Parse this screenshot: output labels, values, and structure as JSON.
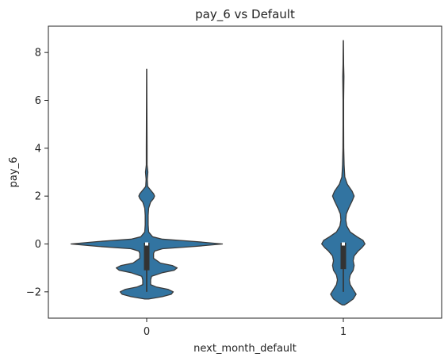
{
  "chart_data": {
    "type": "violin",
    "title": "pay_6 vs Default",
    "xlabel": "next_month_default",
    "ylabel": "pay_6",
    "categories": [
      "0",
      "1"
    ],
    "ylim": [
      -3.1,
      9.1
    ],
    "yticks": [
      -2,
      0,
      2,
      4,
      6,
      8
    ],
    "ytick_labels": [
      "−2",
      "0",
      "2",
      "4",
      "6",
      "8"
    ],
    "grid": false,
    "legend": "none",
    "colors": {
      "fill": "#3274a1",
      "edge": "#3a3a3a",
      "box": "#333333",
      "median": "#ffffff"
    },
    "violins": [
      {
        "category": "0",
        "profile": [
          [
            -2.3,
            0.02
          ],
          [
            -2.2,
            0.16
          ],
          [
            -2.1,
            0.25
          ],
          [
            -2.0,
            0.27
          ],
          [
            -1.9,
            0.22
          ],
          [
            -1.8,
            0.1
          ],
          [
            -1.7,
            0.04
          ],
          [
            -1.5,
            0.04
          ],
          [
            -1.35,
            0.05
          ],
          [
            -1.2,
            0.16
          ],
          [
            -1.1,
            0.28
          ],
          [
            -1.0,
            0.31
          ],
          [
            -0.9,
            0.26
          ],
          [
            -0.8,
            0.14
          ],
          [
            -0.6,
            0.07
          ],
          [
            -0.4,
            0.07
          ],
          [
            -0.3,
            0.08
          ],
          [
            -0.2,
            0.16
          ],
          [
            -0.1,
            0.5
          ],
          [
            0.0,
            0.77
          ],
          [
            0.1,
            0.5
          ],
          [
            0.2,
            0.16
          ],
          [
            0.3,
            0.06
          ],
          [
            0.5,
            0.02
          ],
          [
            0.8,
            0.015
          ],
          [
            1.2,
            0.015
          ],
          [
            1.5,
            0.02
          ],
          [
            1.75,
            0.04
          ],
          [
            1.9,
            0.07
          ],
          [
            2.0,
            0.08
          ],
          [
            2.1,
            0.07
          ],
          [
            2.25,
            0.04
          ],
          [
            2.4,
            0.01
          ],
          [
            2.7,
            0.006
          ],
          [
            3.0,
            0.012
          ],
          [
            3.3,
            0.004
          ],
          [
            4.0,
            0.004
          ],
          [
            5.0,
            0.003
          ],
          [
            6.0,
            0.002
          ],
          [
            7.3,
            0.001
          ]
        ],
        "box": {
          "q1": -1.1,
          "q3": 0.05,
          "median": 0.0,
          "whisker_low": -2.0,
          "whisker_high": 0.05
        }
      },
      {
        "category": "1",
        "profile": [
          [
            -2.55,
            0.01
          ],
          [
            -2.45,
            0.05
          ],
          [
            -2.3,
            0.1
          ],
          [
            -2.1,
            0.13
          ],
          [
            -1.9,
            0.1
          ],
          [
            -1.7,
            0.07
          ],
          [
            -1.5,
            0.06
          ],
          [
            -1.3,
            0.07
          ],
          [
            -1.1,
            0.1
          ],
          [
            -0.9,
            0.11
          ],
          [
            -0.7,
            0.1
          ],
          [
            -0.5,
            0.11
          ],
          [
            -0.3,
            0.15
          ],
          [
            -0.15,
            0.19
          ],
          [
            0.0,
            0.22
          ],
          [
            0.15,
            0.2
          ],
          [
            0.3,
            0.14
          ],
          [
            0.5,
            0.07
          ],
          [
            0.75,
            0.035
          ],
          [
            1.0,
            0.025
          ],
          [
            1.25,
            0.03
          ],
          [
            1.5,
            0.055
          ],
          [
            1.8,
            0.09
          ],
          [
            2.0,
            0.11
          ],
          [
            2.2,
            0.09
          ],
          [
            2.5,
            0.04
          ],
          [
            2.8,
            0.015
          ],
          [
            3.0,
            0.012
          ],
          [
            3.3,
            0.008
          ],
          [
            4.0,
            0.004
          ],
          [
            5.0,
            0.003
          ],
          [
            6.0,
            0.003
          ],
          [
            7.0,
            0.006
          ],
          [
            7.5,
            0.003
          ],
          [
            8.5,
            0.001
          ]
        ],
        "box": {
          "q1": -1.05,
          "q3": 0.05,
          "median": 0.0,
          "whisker_low": -2.0,
          "whisker_high": 0.05
        }
      }
    ]
  }
}
